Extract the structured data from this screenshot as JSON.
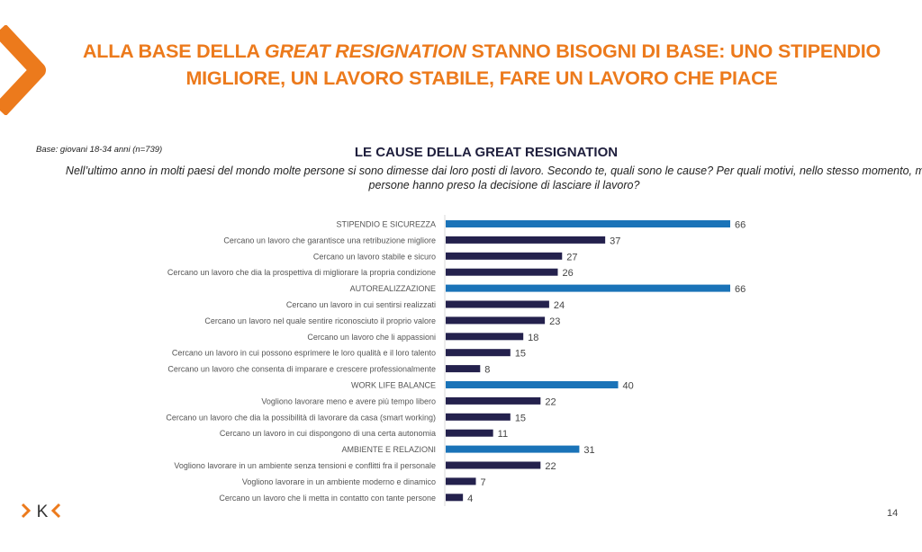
{
  "title": {
    "part1": "ALLA BASE DELLA ",
    "italic": "GREAT RESIGNATION",
    "part2": " STANNO BISOGNI DI BASE: UNO STIPENDIO MIGLIORE, UN LAVORO STABILE, FARE UN LAVORO CHE PIACE"
  },
  "base_note": "Base: giovani 18-34 anni (n=739)",
  "page_number": "14",
  "logo_text": ">K<",
  "colors": {
    "accent": "#ec7a1c",
    "category_bar": "#1a73b8",
    "item_bar": "#24214d"
  },
  "chart_data": {
    "type": "bar",
    "orientation": "horizontal",
    "title": "LE CAUSE DELLA GREAT RESIGNATION",
    "subtitle": "Nell’ultimo anno in molti paesi del mondo molte persone si sono dimesse dai loro posti di lavoro. Secondo te, quali sono le cause? Per quali motivi, nello stesso momento, molte persone hanno preso la decisione di lasciare il lavoro?",
    "xlim": [
      0,
      70
    ],
    "categories": [
      "STIPENDIO E SICUREZZA",
      "Cercano un lavoro che garantisce una retribuzione migliore",
      "Cercano un lavoro stabile e sicuro",
      "Cercano un lavoro che dia la prospettiva di migliorare la propria condizione",
      "AUTOREALIZZAZIONE",
      "Cercano un lavoro in cui sentirsi realizzati",
      "Cercano un lavoro nel quale sentire riconosciuto il proprio valore",
      "Cercano un lavoro che li appassioni",
      "Cercano un lavoro in cui possono esprimere le loro qualità e il loro talento",
      "Cercano un lavoro che consenta di imparare e crescere professionalmente",
      "WORK LIFE BALANCE",
      "Vogliono lavorare meno e avere più tempo libero",
      "Cercano un lavoro che dia la possibilità di lavorare da casa (smart working)",
      "Cercano un lavoro in cui dispongono di una certa autonomia",
      "AMBIENTE E RELAZIONI",
      "Vogliono lavorare in un ambiente senza tensioni e conflitti fra il personale",
      "Vogliono lavorare in un ambiente moderno e dinamico",
      "Cercano un lavoro che li metta in contatto con tante persone"
    ],
    "values": [
      66,
      37,
      27,
      26,
      66,
      24,
      23,
      18,
      15,
      8,
      40,
      22,
      15,
      11,
      31,
      22,
      7,
      4
    ],
    "is_group": [
      true,
      false,
      false,
      false,
      true,
      false,
      false,
      false,
      false,
      false,
      true,
      false,
      false,
      false,
      true,
      false,
      false,
      false
    ]
  }
}
